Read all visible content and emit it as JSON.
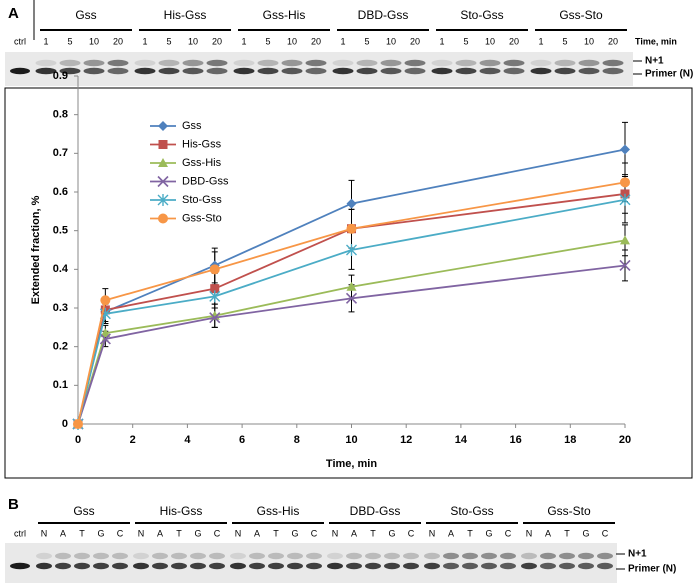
{
  "panel_a": {
    "label": "A",
    "ctrl": "ctrl",
    "groups": [
      "Gss",
      "His-Gss",
      "Gss-His",
      "DBD-Gss",
      "Sto-Gss",
      "Gss-Sto"
    ],
    "lanes": [
      "1",
      "5",
      "10",
      "20"
    ],
    "lane_axis": "Time, min",
    "bands": [
      "N+1",
      "Primer (N)"
    ]
  },
  "panel_b": {
    "label": "B",
    "ctrl": "ctrl",
    "groups": [
      "Gss",
      "His-Gss",
      "Gss-His",
      "DBD-Gss",
      "Sto-Gss",
      "Gss-Sto"
    ],
    "lanes": [
      "N",
      "A",
      "T",
      "G",
      "C"
    ],
    "bands": [
      "N+1",
      "Primer (N)"
    ]
  },
  "chart_data": {
    "type": "line",
    "x_label": "Time, min",
    "y_label": "Extended fraction, %",
    "x": [
      0,
      1,
      5,
      10,
      20
    ],
    "series": [
      {
        "name": "Gss",
        "color": "#4f81bd",
        "marker": "diamond",
        "values": [
          0,
          0.29,
          0.41,
          0.57,
          0.71
        ],
        "errors": [
          0,
          0.03,
          0.045,
          0.06,
          0.07
        ]
      },
      {
        "name": "His-Gss",
        "color": "#c0504d",
        "marker": "square",
        "values": [
          0,
          0.295,
          0.35,
          0.505,
          0.595
        ],
        "errors": [
          0,
          0.03,
          0.04,
          0.05,
          0.05
        ]
      },
      {
        "name": "Gss-His",
        "color": "#9bbb59",
        "marker": "triangle",
        "values": [
          0,
          0.235,
          0.28,
          0.355,
          0.475
        ],
        "errors": [
          0,
          0.02,
          0.03,
          0.03,
          0.04
        ]
      },
      {
        "name": "DBD-Gss",
        "color": "#8064a2",
        "marker": "x",
        "values": [
          0,
          0.22,
          0.275,
          0.325,
          0.41
        ],
        "errors": [
          0,
          0.02,
          0.025,
          0.035,
          0.04
        ]
      },
      {
        "name": "Sto-Gss",
        "color": "#4bacc6",
        "marker": "star",
        "values": [
          0,
          0.285,
          0.33,
          0.45,
          0.58
        ],
        "errors": [
          0,
          0.025,
          0.03,
          0.05,
          0.06
        ]
      },
      {
        "name": "Gss-Sto",
        "color": "#f79646",
        "marker": "circle",
        "values": [
          0,
          0.32,
          0.4,
          0.505,
          0.625
        ],
        "errors": [
          0,
          0.03,
          0.045,
          0.05,
          0.05
        ]
      }
    ],
    "xlim": [
      0,
      20
    ],
    "xticks": [
      0,
      2,
      4,
      6,
      8,
      10,
      12,
      14,
      16,
      18,
      20
    ],
    "ylim": [
      0,
      0.9
    ],
    "yticks": [
      0,
      0.1,
      0.2,
      0.3,
      0.4,
      0.5,
      0.6,
      0.7,
      0.8,
      0.9
    ],
    "grid": false,
    "legend": "upper left"
  }
}
